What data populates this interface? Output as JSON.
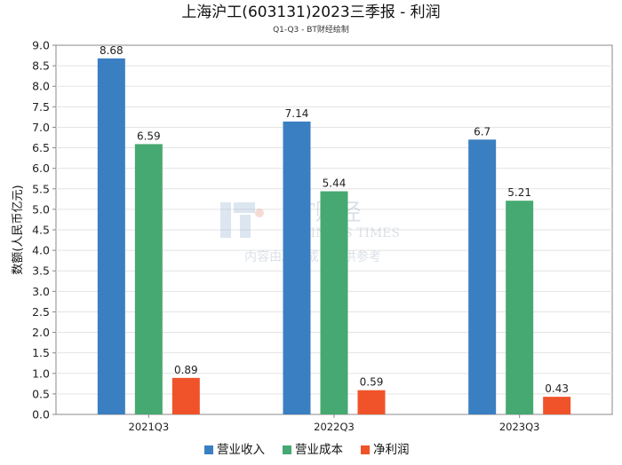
{
  "title": "上海沪工(603131)2023三季报 - 利润",
  "subtitle": "Q1-Q3 - BT财经绘制",
  "watermark": {
    "brand": "BT财经",
    "brand_en": "BUSINESS TIMES",
    "note": "内容由AI生成，仅供参考"
  },
  "chart_data": {
    "type": "bar",
    "categories": [
      "2021Q3",
      "2022Q3",
      "2023Q3"
    ],
    "series": [
      {
        "name": "营业收入",
        "color": "#3a7fc1",
        "values": [
          8.68,
          7.14,
          6.7
        ],
        "labels": [
          "8.68",
          "7.14",
          "6.7"
        ]
      },
      {
        "name": "营业成本",
        "color": "#46a971",
        "values": [
          6.59,
          5.44,
          5.21
        ],
        "labels": [
          "6.59",
          "5.44",
          "5.21"
        ]
      },
      {
        "name": "净利润",
        "color": "#f0532a",
        "values": [
          0.89,
          0.59,
          0.43
        ],
        "labels": [
          "0.89",
          "0.59",
          "0.43"
        ]
      }
    ],
    "ylabel": "数额(人民币亿元)",
    "ylim": [
      0,
      9.0
    ],
    "yticks": [
      "0.0",
      "0.5",
      "1.0",
      "1.5",
      "2.0",
      "2.5",
      "3.0",
      "3.5",
      "4.0",
      "4.5",
      "5.0",
      "5.5",
      "6.0",
      "6.5",
      "7.0",
      "7.5",
      "8.0",
      "8.5",
      "9.0"
    ],
    "grid": "y",
    "legend": "bottom"
  }
}
